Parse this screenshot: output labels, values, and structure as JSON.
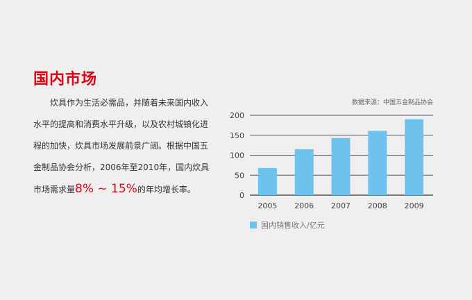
{
  "heading": "国内市场",
  "paragraph": {
    "lines": [
      "炊具作为生活必需品，并随着未来国内收入",
      "水平的提高和消费水平升级，以及农村城镇化进",
      "程的加快，炊具市场发展前景广阔。根据中国五",
      "金制品协会分析，2006年至2010年，国内炊具"
    ],
    "last_prefix": "市场需求量",
    "last_highlight": "8% ~ 15%",
    "last_suffix": "的年均增长率。"
  },
  "source_note": "数据来源：中国五金制品协会",
  "chart_data": {
    "type": "bar",
    "categories": [
      "2005",
      "2006",
      "2007",
      "2008",
      "2009"
    ],
    "series": [
      {
        "name": "国内销售收入/亿元",
        "values": [
          68,
          115,
          143,
          161,
          190
        ]
      }
    ],
    "yticks": [
      0,
      50,
      100,
      150,
      200
    ],
    "ylim": [
      0,
      200
    ],
    "grid": true,
    "legend_position": "bottom-left",
    "colors": {
      "bar": "#6ec3ee",
      "grid": "#555555",
      "text": "#444444"
    }
  }
}
